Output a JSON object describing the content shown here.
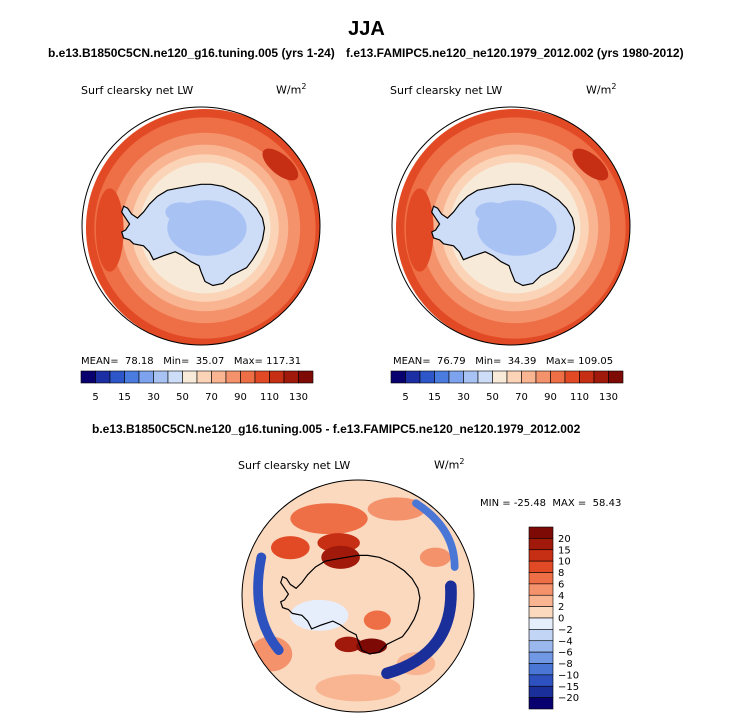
{
  "figure": {
    "title": "JJA",
    "top_left_subtitle": "b.e13.B1850C5CN.ne120_g16.tuning.005 (yrs 1-24)",
    "top_right_subtitle": "f.e13.FAMIPC5.ne120_ne120.1979_2012.002 (yrs 1980-2012)",
    "diff_subtitle": "b.e13.B1850C5CN.ne120_g16.tuning.005 - f.e13.FAMIPC5.ne120_ne120.1979_2012.002"
  },
  "chart_data": [
    {
      "type": "heatmap",
      "projection": "polar-stereographic-south",
      "variable": "Surf clearsky net LW",
      "units_base": "W/m",
      "units_exp": "2",
      "stats": {
        "mean_label": "MEAN=",
        "mean": "78.18",
        "min_label": "Min=",
        "min": "35.07",
        "max_label": "Max=",
        "max": "117.31"
      },
      "colorbar_orientation": "horizontal",
      "colorbar_levels": [
        5,
        10,
        15,
        20,
        30,
        40,
        50,
        60,
        70,
        80,
        90,
        100,
        110,
        120,
        130
      ],
      "colorbar_tick_labels": [
        "5",
        "15",
        "30",
        "50",
        "70",
        "90",
        "110",
        "130"
      ],
      "colorbar_colors": [
        "#08006e",
        "#1c2ea3",
        "#2d56c8",
        "#4a7ce0",
        "#7ea3ee",
        "#a8c2f3",
        "#cddcf7",
        "#f8ead9",
        "#fbd4b8",
        "#f9b592",
        "#f4926c",
        "#ee6e45",
        "#e24a25",
        "#c62f14",
        "#a0190b",
        "#7d0a05"
      ]
    },
    {
      "type": "heatmap",
      "projection": "polar-stereographic-south",
      "variable": "Surf clearsky net LW",
      "units_base": "W/m",
      "units_exp": "2",
      "stats": {
        "mean_label": "MEAN=",
        "mean": "76.79",
        "min_label": "Min=",
        "min": "34.39",
        "max_label": "Max=",
        "max": "109.05"
      },
      "colorbar_orientation": "horizontal",
      "colorbar_levels": [
        5,
        10,
        15,
        20,
        30,
        40,
        50,
        60,
        70,
        80,
        90,
        100,
        110,
        120,
        130
      ],
      "colorbar_tick_labels": [
        "5",
        "15",
        "30",
        "50",
        "70",
        "90",
        "110",
        "130"
      ],
      "colorbar_colors": [
        "#08006e",
        "#1c2ea3",
        "#2d56c8",
        "#4a7ce0",
        "#7ea3ee",
        "#a8c2f3",
        "#cddcf7",
        "#f8ead9",
        "#fbd4b8",
        "#f9b592",
        "#f4926c",
        "#ee6e45",
        "#e24a25",
        "#c62f14",
        "#a0190b",
        "#7d0a05"
      ]
    },
    {
      "type": "heatmap",
      "projection": "polar-stereographic-south",
      "variable": "Surf clearsky net LW",
      "units_base": "W/m",
      "units_exp": "2",
      "stats": {
        "min_label": "MIN =",
        "min": "-25.48",
        "max_label": "MAX =",
        "max": "58.43"
      },
      "colorbar_orientation": "vertical",
      "colorbar_levels": [
        20,
        15,
        10,
        8,
        6,
        4,
        2,
        0,
        -2,
        -4,
        -6,
        -8,
        -10,
        -15,
        -20
      ],
      "colorbar_tick_labels": [
        "20",
        "15",
        "10",
        "8",
        "6",
        "4",
        "2",
        "0",
        "−2",
        "−4",
        "−6",
        "−8",
        "−10",
        "−15",
        "−20"
      ],
      "colorbar_colors": [
        "#7d0a05",
        "#a0190b",
        "#c62f14",
        "#e24a25",
        "#ee6e45",
        "#f4926c",
        "#f9b592",
        "#fbd9bf",
        "#e6eefc",
        "#c2d5f5",
        "#9ab8ee",
        "#7098e4",
        "#4a76d6",
        "#2d52bf",
        "#1a2f9a",
        "#08006e"
      ]
    }
  ],
  "colors": {
    "coastline": "#000000",
    "frame": "#000000"
  }
}
